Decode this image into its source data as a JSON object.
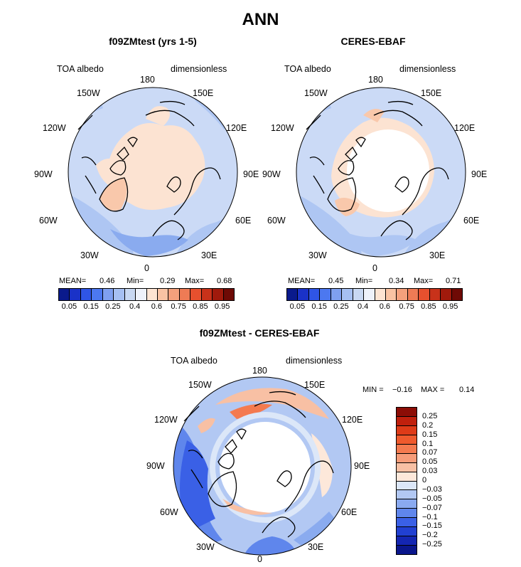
{
  "title": "ANN",
  "panels": [
    {
      "title": "f09ZMtest (yrs 1-5)",
      "left_label": "TOA albedo",
      "right_label": "dimensionless",
      "stats": {
        "mean_label": "MEAN=",
        "mean": "0.46",
        "min_label": "Min=",
        "min": "0.29",
        "max_label": "Max=",
        "max": "0.68"
      }
    },
    {
      "title": "CERES-EBAF",
      "left_label": "TOA albedo",
      "right_label": "dimensionless",
      "stats": {
        "mean_label": "MEAN=",
        "mean": "0.45",
        "min_label": "Min=",
        "min": "0.34",
        "max_label": "Max=",
        "max": "0.71"
      }
    },
    {
      "title": "f09ZMtest - CERES-EBAF",
      "left_label": "TOA albedo",
      "right_label": "dimensionless",
      "stats": {
        "min_label": "MIN =",
        "min": "−0.16",
        "max_label": "MAX =",
        "max": "0.14"
      }
    }
  ],
  "longitudes": {
    "lon180": "180",
    "lon150w": "150W",
    "lon150e": "150E",
    "lon120w": "120W",
    "lon120e": "120E",
    "lon90w": "90W",
    "lon90e": "90E",
    "lon60w": "60W",
    "lon60e": "60E",
    "lon30w": "30W",
    "lon30e": "30E",
    "lon0": "0"
  },
  "abs_colorbar": {
    "ticks": [
      "0.05",
      "0.15",
      "0.25",
      "0.4",
      "0.6",
      "0.75",
      "0.85",
      "0.95"
    ],
    "colors": [
      "#0a1a8c",
      "#1a32c8",
      "#2f55e6",
      "#4c78f0",
      "#7fa0f0",
      "#a6c0f2",
      "#c8d8f2",
      "#eef2fa",
      "#fde4d2",
      "#f9c3a3",
      "#f4a07c",
      "#ee7b55",
      "#e6502e",
      "#c8321a",
      "#a01a0c",
      "#6e0a05"
    ]
  },
  "diff_colorbar": {
    "ticks": [
      "0.25",
      "0.2",
      "0.15",
      "0.1",
      "0.07",
      "0.05",
      "0.03",
      "0",
      "−0.03",
      "−0.05",
      "−0.07",
      "−0.1",
      "−0.15",
      "−0.2",
      "−0.25"
    ],
    "colors": [
      "#8c0d06",
      "#c0200d",
      "#de3b18",
      "#ef5a2d",
      "#f47a4f",
      "#f69c79",
      "#f8c0a4",
      "#fde8da",
      "#dce7f8",
      "#b2c8f3",
      "#8aaaf0",
      "#5f86ec",
      "#3a60e6",
      "#2140d2",
      "#1426b2",
      "#0a168c"
    ]
  },
  "map_colors": {
    "ocean_light": "#cbdaf6",
    "ocean_mid": "#aec6f3",
    "ocean_dark": "#8aabef",
    "blue_strong": "#5f86ec",
    "land_pale": "#fce3d2",
    "land_mid": "#f9c8ab",
    "land_strong": "#f2a37f",
    "white": "#ffffff"
  }
}
